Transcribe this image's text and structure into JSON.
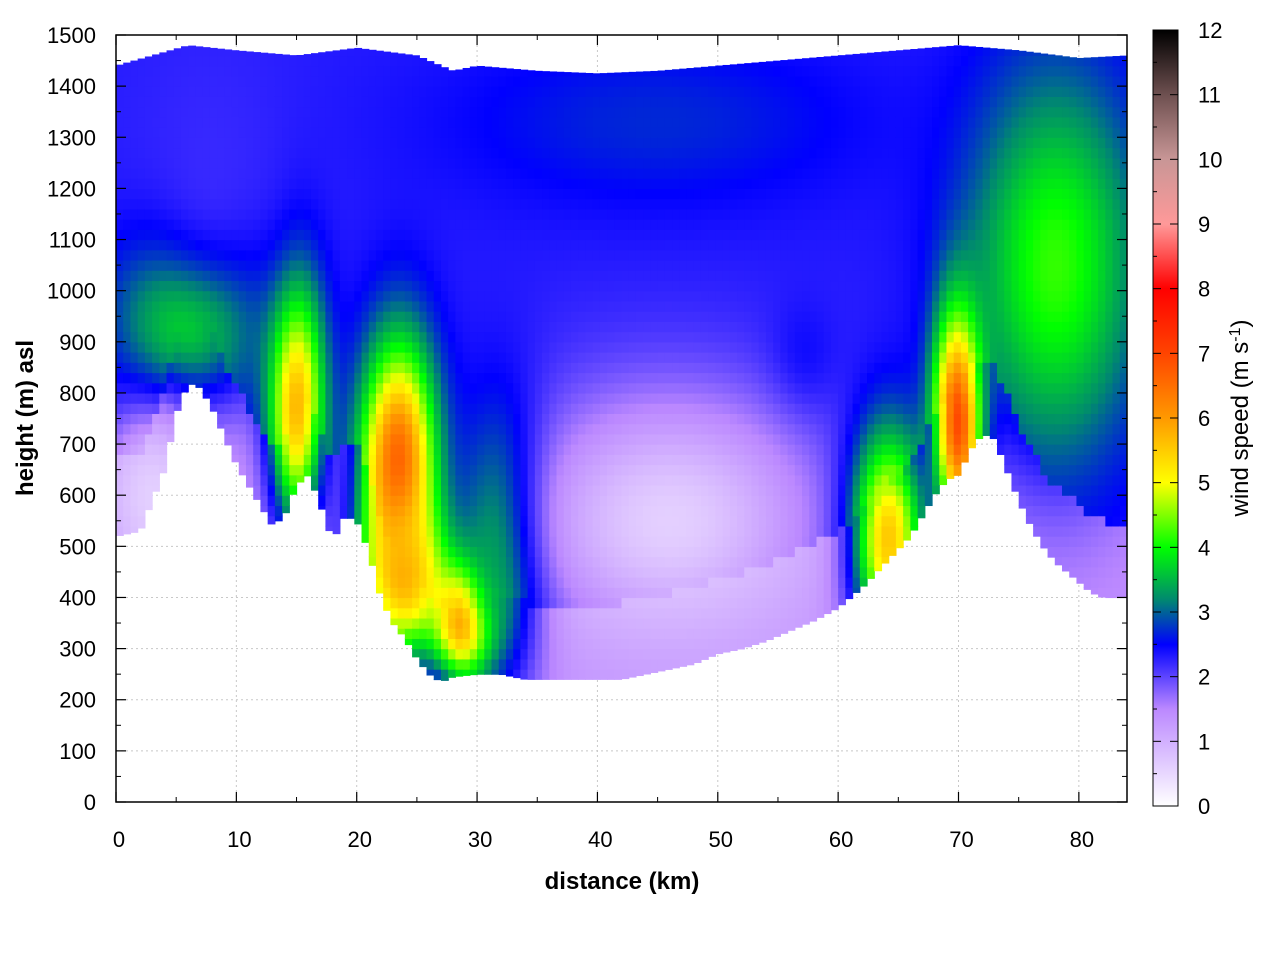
{
  "chart_data": {
    "type": "heatmap",
    "title": "",
    "xlabel": "distance (km)",
    "ylabel": "height (m) asl",
    "colorbar_label_prefix": "wind speed (m s",
    "colorbar_label_exponent": "-1",
    "colorbar_label_suffix": ")",
    "xlim": [
      0,
      84
    ],
    "ylim": [
      0,
      1500
    ],
    "x_ticks": [
      0,
      10,
      20,
      30,
      40,
      50,
      60,
      70,
      80
    ],
    "y_ticks": [
      0,
      100,
      200,
      300,
      400,
      500,
      600,
      700,
      800,
      900,
      1000,
      1100,
      1200,
      1300,
      1400,
      1500
    ],
    "colorbar_range": [
      0,
      12
    ],
    "colorbar_ticks": [
      0,
      1,
      2,
      3,
      4,
      5,
      6,
      7,
      8,
      9,
      10,
      11,
      12
    ],
    "grid": true,
    "colormap_stops": [
      {
        "value": 0,
        "color": "#ffffff"
      },
      {
        "value": 1.5,
        "color": "#bb88ff"
      },
      {
        "value": 2.5,
        "color": "#0000ff"
      },
      {
        "value": 3.2,
        "color": "#008a6e"
      },
      {
        "value": 4,
        "color": "#00ff00"
      },
      {
        "value": 5,
        "color": "#ffff00"
      },
      {
        "value": 6,
        "color": "#ff9900"
      },
      {
        "value": 7,
        "color": "#ff4400"
      },
      {
        "value": 8,
        "color": "#ff0000"
      },
      {
        "value": 9,
        "color": "#ff9999"
      },
      {
        "value": 10,
        "color": "#c89696"
      },
      {
        "value": 11,
        "color": "#6e5050"
      },
      {
        "value": 12,
        "color": "#000000"
      }
    ],
    "terrain_profile": {
      "distance_km": [
        0,
        2,
        4,
        5,
        6,
        7,
        8,
        10,
        12,
        13,
        14,
        15,
        16,
        17,
        18,
        19,
        20,
        21,
        22,
        23,
        24,
        25,
        26,
        27,
        28,
        30,
        32,
        34,
        36,
        38,
        40,
        42,
        44,
        46,
        48,
        50,
        52,
        54,
        56,
        58,
        60,
        62,
        64,
        66,
        67,
        68,
        69,
        70,
        71,
        72,
        73,
        74,
        75,
        76,
        77,
        78,
        79,
        80,
        81,
        82,
        83,
        84
      ],
      "height_m": [
        520,
        530,
        650,
        760,
        820,
        810,
        770,
        660,
        580,
        540,
        560,
        620,
        640,
        580,
        510,
        560,
        550,
        490,
        400,
        350,
        320,
        280,
        250,
        235,
        245,
        250,
        250,
        240,
        240,
        240,
        240,
        240,
        250,
        260,
        270,
        290,
        300,
        315,
        335,
        355,
        380,
        420,
        470,
        520,
        560,
        600,
        630,
        640,
        690,
        720,
        710,
        650,
        590,
        540,
        500,
        470,
        450,
        430,
        410,
        400,
        400,
        400
      ]
    },
    "top_boundary": {
      "distance_km": [
        0,
        3,
        6,
        10,
        15,
        20,
        25,
        28,
        30,
        35,
        40,
        45,
        50,
        55,
        60,
        65,
        70,
        75,
        80,
        84
      ],
      "height_m": [
        1440,
        1460,
        1480,
        1470,
        1460,
        1475,
        1460,
        1430,
        1440,
        1430,
        1425,
        1430,
        1440,
        1450,
        1460,
        1470,
        1480,
        1470,
        1455,
        1460
      ]
    },
    "wind_speed_features": [
      {
        "distance_km": 6,
        "height_m": 950,
        "speed": 4.2,
        "sigma_x_km": 4,
        "sigma_y_m": 120
      },
      {
        "distance_km": 15,
        "height_m": 780,
        "speed": 5.8,
        "sigma_x_km": 1.6,
        "sigma_y_m": 170
      },
      {
        "distance_km": 23.5,
        "height_m": 650,
        "speed": 7.0,
        "sigma_x_km": 2.2,
        "sigma_y_m": 170
      },
      {
        "distance_km": 24,
        "height_m": 450,
        "speed": 6.0,
        "sigma_x_km": 2.5,
        "sigma_y_m": 110
      },
      {
        "distance_km": 29,
        "height_m": 360,
        "speed": 7.2,
        "sigma_x_km": 1.8,
        "sigma_y_m": 80
      },
      {
        "distance_km": 32,
        "height_m": 500,
        "speed": 4.3,
        "sigma_x_km": 2.5,
        "sigma_y_m": 180
      },
      {
        "distance_km": 64,
        "height_m": 520,
        "speed": 6.3,
        "sigma_x_km": 2.2,
        "sigma_y_m": 140
      },
      {
        "distance_km": 70,
        "height_m": 750,
        "speed": 7.5,
        "sigma_x_km": 1.4,
        "sigma_y_m": 150
      },
      {
        "distance_km": 78,
        "height_m": 1050,
        "speed": 4.2,
        "sigma_x_km": 5,
        "sigma_y_m": 260
      },
      {
        "distance_km": 8,
        "height_m": 1250,
        "speed": 2.2,
        "sigma_x_km": 5,
        "sigma_y_m": 200
      },
      {
        "distance_km": 45,
        "height_m": 1330,
        "speed": 2.7,
        "sigma_x_km": 12,
        "sigma_y_m": 120
      },
      {
        "distance_km": 57,
        "height_m": 850,
        "speed": 2.6,
        "sigma_x_km": 2,
        "sigma_y_m": 80
      },
      {
        "distance_km": 46,
        "height_m": 550,
        "speed": 0.6,
        "sigma_x_km": 9,
        "sigma_y_m": 180
      },
      {
        "distance_km": 3,
        "height_m": 600,
        "speed": 0.6,
        "sigma_x_km": 3,
        "sigma_y_m": 120
      }
    ]
  }
}
